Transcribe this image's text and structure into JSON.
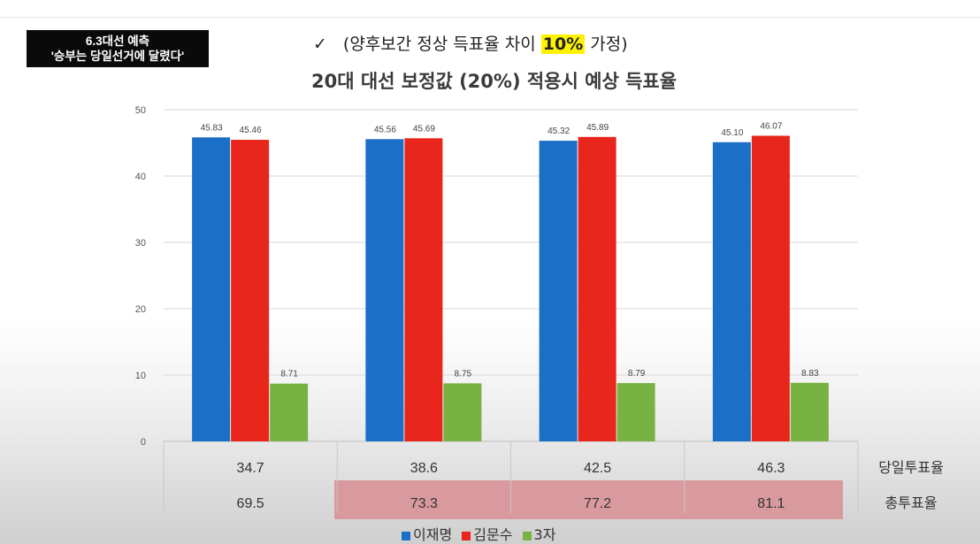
{
  "badge": {
    "line1": "6.3대선 예측",
    "line2": "'승부는 당일선거에 달렸다'"
  },
  "subtitle": {
    "check": "✓",
    "prefix": "(양후보간 정상 득표율 차이 ",
    "highlight": "10%",
    "suffix": " 가정)"
  },
  "chart_data": {
    "type": "bar",
    "title": "20대 대선 보정값 (20%) 적용시 예상 득표율",
    "ylim": [
      0,
      50
    ],
    "yticks": [
      0,
      10,
      20,
      30,
      40,
      50
    ],
    "grid": true,
    "legend_position": "bottom",
    "categories": [
      "34.7",
      "38.6",
      "42.5",
      "46.3"
    ],
    "series": [
      {
        "name": "이재명",
        "color": "#1b6fc6",
        "values": [
          45.83,
          45.56,
          45.32,
          45.1
        ],
        "labels": [
          "45.83",
          "45.56",
          "45.32",
          "45.10"
        ]
      },
      {
        "name": "김문수",
        "color": "#e8261b",
        "values": [
          45.46,
          45.69,
          45.89,
          46.07
        ],
        "labels": [
          "45.46",
          "45.69",
          "45.89",
          "46.07"
        ]
      },
      {
        "name": "3자",
        "color": "#77b243",
        "values": [
          8.71,
          8.75,
          8.79,
          8.83
        ],
        "labels": [
          "8.71",
          "8.75",
          "8.79",
          "8.83"
        ]
      }
    ],
    "table": {
      "rows": [
        {
          "label": "당일투표율",
          "values": [
            "34.7",
            "38.6",
            "42.5",
            "46.3"
          ]
        },
        {
          "label": "총투표율",
          "values": [
            "69.5",
            "73.3",
            "77.2",
            "81.1"
          ]
        }
      ],
      "highlight_color": "#d99a9e"
    }
  }
}
